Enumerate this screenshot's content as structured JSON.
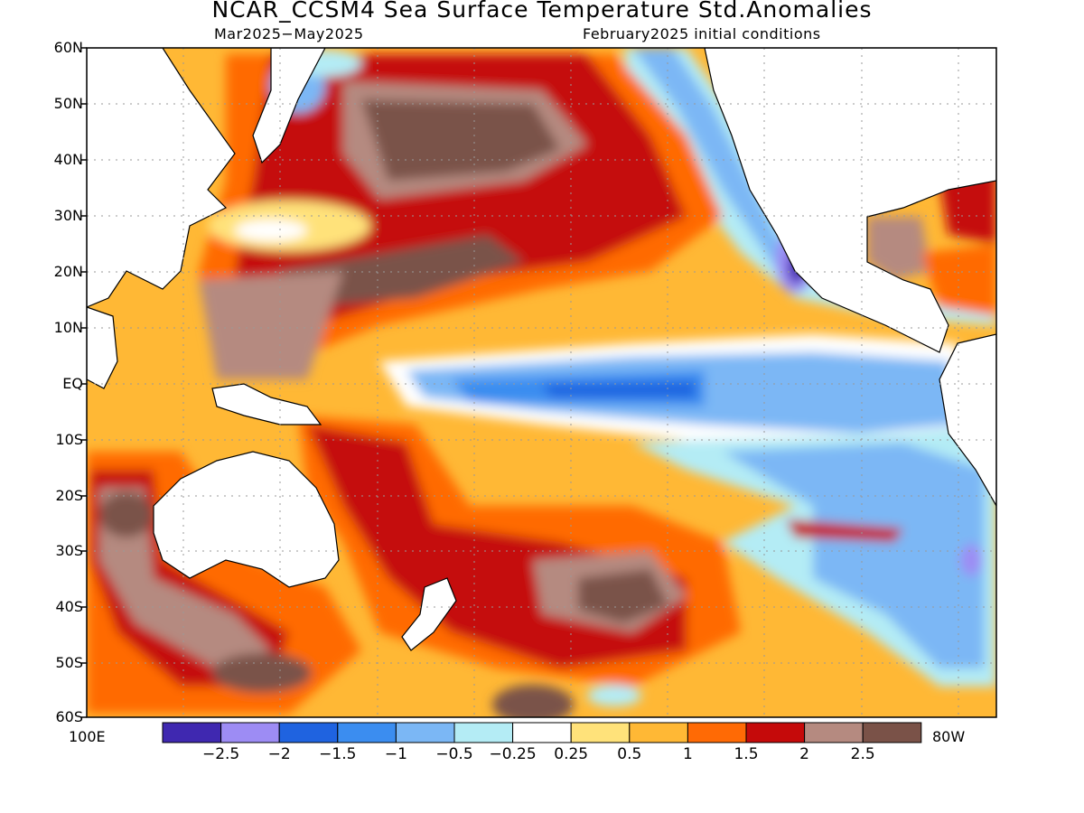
{
  "title": "NCAR_CCSM4 Sea Surface Temperature Std.Anomalies",
  "subtitle_left": "Mar2025−May2025",
  "subtitle_right": "February2025 initial conditions",
  "lat_labels": [
    "60N",
    "50N",
    "40N",
    "30N",
    "20N",
    "10N",
    "EQ",
    "10S",
    "20S",
    "30S",
    "40S",
    "50S",
    "60S"
  ],
  "lon_left": "100E",
  "lon_right": "80W",
  "colorbar": {
    "colors": [
      "#3f28b0",
      "#9d8cf4",
      "#1f63e0",
      "#3b8df0",
      "#7bb7f5",
      "#b4ecf5",
      "#ffffff",
      "#ffe27a",
      "#ffb835",
      "#ff6a05",
      "#c50a0a",
      "#b58a80",
      "#7a5248"
    ],
    "labels": [
      "−2.5",
      "−2",
      "−1.5",
      "−1",
      "−0.5",
      "−0.25",
      "0.25",
      "0.5",
      "1",
      "1.5",
      "2",
      "2.5"
    ]
  }
}
